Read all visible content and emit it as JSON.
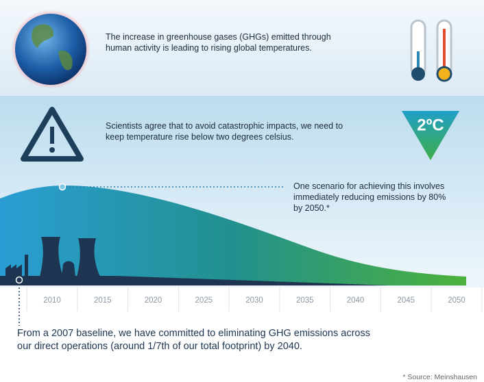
{
  "intro": {
    "lines": [
      "The increase in greenhouse gases (GHGs) emitted through",
      "human activity is leading to rising global temperatures."
    ]
  },
  "warning": {
    "lines": [
      "Scientists agree that to avoid catastrophic impacts, we need to",
      "keep temperature rise below two degrees celsius."
    ],
    "badge": "2ºC"
  },
  "scenario": {
    "lines": [
      "One scenario for achieving this involves",
      "immediately reducing emissions by 80%",
      "by 2050.*"
    ]
  },
  "timeline": {
    "years": [
      "2010",
      "2015",
      "2020",
      "2025",
      "2030",
      "2035",
      "2040",
      "2045",
      "2050"
    ]
  },
  "commitment": {
    "lines": [
      "From a 2007 baseline, we have committed to eliminating GHG emissions across",
      "our direct operations (around 1/7th of our total footprint) by 2040."
    ]
  },
  "source": "* Source: Meinshausen"
}
